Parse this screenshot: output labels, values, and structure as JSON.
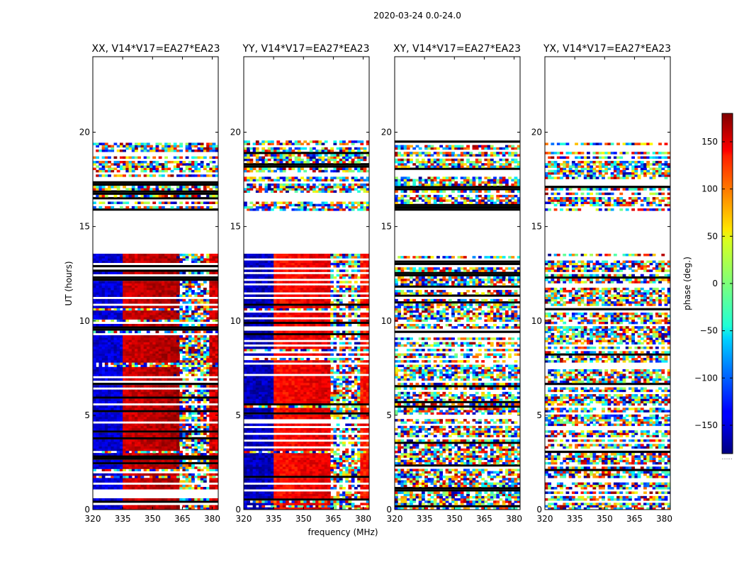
{
  "chart_data": {
    "type": "heatmap",
    "suptitle": "2020-03-24 0.0-24.0",
    "xlabel": "frequency (MHz)",
    "ylabel": "UT (hours)",
    "xlim": [
      320,
      383
    ],
    "ylim": [
      0,
      24
    ],
    "xticks": [
      320,
      335,
      350,
      365,
      380
    ],
    "xtick_labels": [
      "320",
      "335",
      "350",
      "365",
      "380"
    ],
    "yticks": [
      0,
      5,
      10,
      15,
      20
    ],
    "ytick_labels": [
      "0",
      "5",
      "10",
      "15",
      "20"
    ],
    "colorbar": {
      "label": "phase (deg.)",
      "range": [
        -180,
        180
      ],
      "ticks": [
        150,
        100,
        50,
        0,
        -50,
        -100,
        -150
      ],
      "tick_labels": [
        "150",
        "100",
        "50",
        "0",
        "−50",
        "−100",
        "−150"
      ],
      "colormap": "jet",
      "bottom_note": "......"
    },
    "data_gaps_hours": [
      [
        13.45,
        15.8
      ],
      [
        19.5,
        24.0
      ]
    ],
    "noisy_above_mhz": 363,
    "panels": [
      {
        "name": "xx",
        "title": "XX, V14*V17=EA27*EA23",
        "low_band_phase_deg": -150,
        "mid_band_phase_deg": 150
      },
      {
        "name": "yy",
        "title": "YY, V14*V17=EA27*EA23",
        "low_band_phase_deg": -160,
        "mid_band_phase_deg": 130
      },
      {
        "name": "xy",
        "title": "XY, V14*V17=EA27*EA23",
        "low_band_phase_deg": null,
        "mid_band_phase_deg": null
      },
      {
        "name": "yx",
        "title": "YX, V14*V17=EA27*EA23",
        "low_band_phase_deg": null,
        "mid_band_phase_deg": null
      }
    ]
  }
}
